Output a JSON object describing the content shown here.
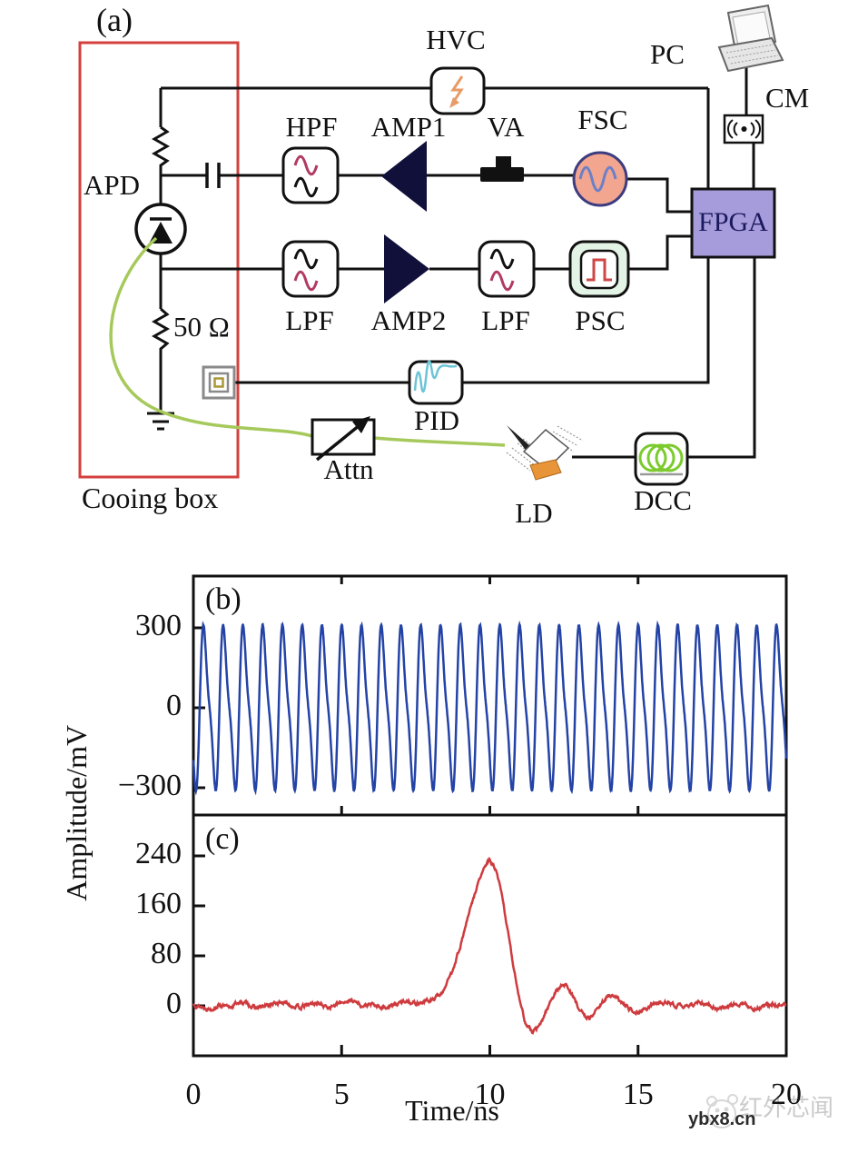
{
  "figure": {
    "panel_a": "(a)",
    "panel_b": "(b)",
    "panel_c": "(c)"
  },
  "diagram": {
    "labels": {
      "apd": "APD",
      "hvc": "HVC",
      "hpf": "HPF",
      "amp1": "AMP1",
      "va": "VA",
      "fsc": "FSC",
      "pc": "PC",
      "cm": "CM",
      "fpga": "FPGA",
      "lpf1": "LPF",
      "amp2": "AMP2",
      "lpf2": "LPF",
      "psc": "PSC",
      "resistor": "50 Ω",
      "pid": "PID",
      "attn": "Attn",
      "ld": "LD",
      "dcc": "DCC",
      "cooling_box": "Cooing box"
    },
    "colors": {
      "cooling_box_border": "#D4403E",
      "fpga_fill": "#A79CDB",
      "fpga_text": "#1A1A5E",
      "fsc_fill": "#F2A58F",
      "fsc_border": "#3C3C80",
      "fsc_wave": "#6B80C8",
      "psc_fill": "#E3F3E5",
      "pulse_red": "#CF4646",
      "filter_wave_red": "#B23A62",
      "hvc_bolt": "#E89B66",
      "fiber_green": "#A6C95B",
      "coil_green": "#7CCB2E",
      "amp_fill": "#10103A",
      "pid_wave": "#6CC4D6"
    }
  },
  "axes": {
    "xlabel": "Time/ns",
    "ylabel": "Amplitude/mV",
    "xlim": [
      0,
      20
    ],
    "xticks": [
      0,
      5,
      10,
      15,
      20
    ],
    "xtick_labels": [
      "0",
      "5",
      "10",
      "15",
      "20"
    ]
  },
  "chart_data": [
    {
      "panel": "b",
      "type": "line",
      "color": "#2443A6",
      "xlim": [
        0,
        20
      ],
      "ylim": [
        -400,
        490
      ],
      "yticks": [
        300,
        0,
        -300
      ],
      "ytick_labels": [
        "300",
        "0",
        "−300"
      ],
      "waveform": {
        "kind": "distorted_sine",
        "cycles": 30,
        "frequency_ghz": 1.5,
        "amplitude_mv": 277,
        "harmonic2_ratio": 0.28,
        "phase_rad": -2.0,
        "noise_mv": 3
      }
    },
    {
      "panel": "c",
      "type": "line",
      "color": "#CE3B3E",
      "xlim": [
        0,
        20
      ],
      "ylim": [
        -80,
        305
      ],
      "yticks": [
        240,
        160,
        80,
        0
      ],
      "ytick_labels": [
        "240",
        "160",
        "80",
        "0"
      ],
      "peak_mv": 232,
      "peak_ns": 10,
      "noise_mv": 2,
      "points": [
        [
          0,
          3
        ],
        [
          0.3,
          -2
        ],
        [
          0.6,
          -5
        ],
        [
          0.9,
          2
        ],
        [
          1.2,
          -4
        ],
        [
          1.5,
          6
        ],
        [
          1.8,
          4
        ],
        [
          2.1,
          -4
        ],
        [
          2.4,
          -1
        ],
        [
          2.7,
          3
        ],
        [
          3.0,
          6
        ],
        [
          3.3,
          1
        ],
        [
          3.6,
          -3
        ],
        [
          3.9,
          2
        ],
        [
          4.2,
          5
        ],
        [
          4.5,
          -2
        ],
        [
          4.8,
          1
        ],
        [
          5.1,
          7
        ],
        [
          5.4,
          9
        ],
        [
          5.7,
          -1
        ],
        [
          6.0,
          2
        ],
        [
          6.3,
          -3
        ],
        [
          6.6,
          -1
        ],
        [
          6.9,
          3
        ],
        [
          7.2,
          9
        ],
        [
          7.5,
          4
        ],
        [
          7.8,
          7
        ],
        [
          8.1,
          10
        ],
        [
          8.4,
          22
        ],
        [
          8.7,
          52
        ],
        [
          9.0,
          95
        ],
        [
          9.3,
          148
        ],
        [
          9.6,
          196
        ],
        [
          9.85,
          225
        ],
        [
          10.0,
          232
        ],
        [
          10.2,
          218
        ],
        [
          10.4,
          178
        ],
        [
          10.6,
          122
        ],
        [
          10.8,
          62
        ],
        [
          11.0,
          12
        ],
        [
          11.2,
          -28
        ],
        [
          11.45,
          -43
        ],
        [
          11.7,
          -31
        ],
        [
          11.9,
          -8
        ],
        [
          12.1,
          13
        ],
        [
          12.35,
          30
        ],
        [
          12.55,
          34
        ],
        [
          12.75,
          21
        ],
        [
          12.95,
          1
        ],
        [
          13.15,
          -14
        ],
        [
          13.35,
          -20
        ],
        [
          13.55,
          -10
        ],
        [
          13.8,
          7
        ],
        [
          14.0,
          16
        ],
        [
          14.2,
          14
        ],
        [
          14.45,
          5
        ],
        [
          14.7,
          -5
        ],
        [
          15.0,
          -9
        ],
        [
          15.3,
          -4
        ],
        [
          15.6,
          4
        ],
        [
          15.9,
          7
        ],
        [
          16.2,
          2
        ],
        [
          16.5,
          -2
        ],
        [
          16.8,
          2
        ],
        [
          17.1,
          5
        ],
        [
          17.4,
          1
        ],
        [
          17.7,
          -4
        ],
        [
          18.0,
          -1
        ],
        [
          18.3,
          4
        ],
        [
          18.6,
          1
        ],
        [
          18.9,
          -4
        ],
        [
          19.2,
          -2
        ],
        [
          19.5,
          3
        ],
        [
          19.8,
          1
        ],
        [
          20,
          2
        ]
      ]
    }
  ],
  "watermark": {
    "name": "红外芯闻",
    "site": "ybx8.cn"
  }
}
